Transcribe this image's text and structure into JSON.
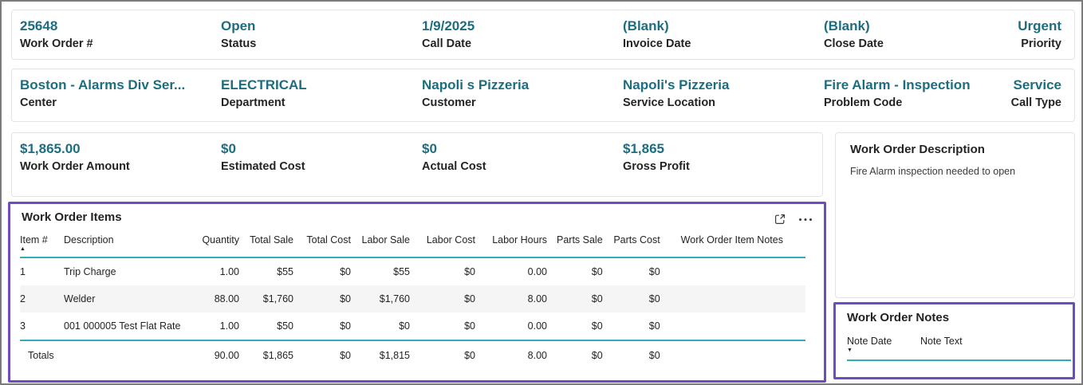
{
  "theme": {
    "value_color": "#1d6d80",
    "label_color": "#252423",
    "accent_line": "#35acb5",
    "highlight_border": "#6f4bc3",
    "frame_border": "#7b7b7b",
    "alt_row_color": "#f5f5f5"
  },
  "fields_row1": [
    {
      "value": "25648",
      "label": "Work Order #"
    },
    {
      "value": "Open",
      "label": "Status"
    },
    {
      "value": "1/9/2025",
      "label": "Call Date"
    },
    {
      "value": "(Blank)",
      "label": "Invoice Date"
    },
    {
      "value": "(Blank)",
      "label": "Close Date"
    },
    {
      "value": "Urgent",
      "label": "Priority"
    }
  ],
  "fields_row2": [
    {
      "value": "Boston - Alarms Div Ser...",
      "label": "Center"
    },
    {
      "value": "ELECTRICAL",
      "label": "Department"
    },
    {
      "value": "Napoli s Pizzeria",
      "label": "Customer"
    },
    {
      "value": "Napoli's Pizzeria",
      "label": "Service Location"
    },
    {
      "value": "Fire Alarm - Inspection",
      "label": "Problem Code"
    },
    {
      "value": "Service",
      "label": "Call Type"
    }
  ],
  "kpis": [
    {
      "value": "$1,865.00",
      "label": "Work Order Amount"
    },
    {
      "value": "$0",
      "label": "Estimated Cost"
    },
    {
      "value": "$0",
      "label": "Actual Cost"
    },
    {
      "value": "$1,865",
      "label": "Gross Profit"
    }
  ],
  "description_panel": {
    "title": "Work Order Description",
    "body": "Fire Alarm inspection needed to open"
  },
  "items_panel": {
    "title": "Work Order Items",
    "icons": {
      "focus_mode": "focus-mode-icon",
      "more_options": "more-options-icon"
    },
    "sort": {
      "column": "Item #",
      "direction": "ascending"
    },
    "columns": [
      "Item #",
      "Description",
      "Quantity",
      "Total Sale",
      "Total Cost",
      "Labor Sale",
      "Labor Cost",
      "Labor Hours",
      "Parts Sale",
      "Parts Cost",
      "Work Order Item Notes"
    ],
    "rows": [
      [
        "1",
        "Trip Charge",
        "1.00",
        "$55",
        "$0",
        "$55",
        "$0",
        "0.00",
        "$0",
        "$0",
        ""
      ],
      [
        "2",
        "Welder",
        "88.00",
        "$1,760",
        "$0",
        "$1,760",
        "$0",
        "8.00",
        "$0",
        "$0",
        ""
      ],
      [
        "3",
        "001 000005 Test Flat Rate",
        "1.00",
        "$50",
        "$0",
        "$0",
        "$0",
        "0.00",
        "$0",
        "$0",
        ""
      ]
    ],
    "totals_row": [
      "Totals",
      "",
      "90.00",
      "$1,865",
      "$0",
      "$1,815",
      "$0",
      "8.00",
      "$0",
      "$0",
      ""
    ]
  },
  "notes_panel": {
    "title": "Work Order Notes",
    "columns": [
      "Note Date",
      "Note Text"
    ],
    "sort": {
      "column": "Note Date",
      "direction": "descending"
    },
    "rows": []
  }
}
